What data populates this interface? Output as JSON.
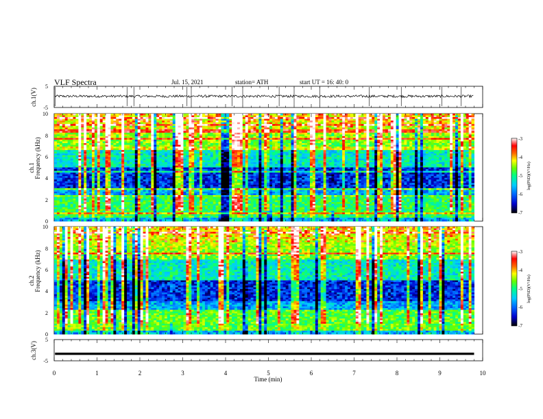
{
  "header": {
    "title": "VLF  Spectra",
    "date": "Jul.  15,  2021",
    "station": "station= ATH",
    "start": "start  UT  =    16: 40: 0"
  },
  "chart_data": [
    {
      "type": "line",
      "panel": "ch1_waveform",
      "ylabel": "ch.1(V)",
      "ylim": [
        -5,
        5
      ],
      "yticks": [
        "5",
        "-5"
      ],
      "xlim": [
        0,
        10
      ],
      "baseline_v": 0.3,
      "noise_amplitude_v": 0.6,
      "spike_times_min": [
        0.02,
        1.7,
        1.86,
        3.1,
        3.2,
        4.15,
        4.4,
        5.25,
        5.6,
        6.2,
        7.35,
        8.1,
        9.05,
        9.5
      ],
      "color": "#000000"
    },
    {
      "type": "heatmap",
      "panel": "ch1_spectrogram",
      "ylabel_lines": [
        "ch.1",
        "Frequency  (kHz)"
      ],
      "ylim": [
        0,
        10
      ],
      "yticks": [
        "0",
        "2",
        "4",
        "6",
        "8",
        "10"
      ],
      "xlim": [
        0,
        9.8
      ],
      "clim": [
        -7,
        -3
      ],
      "colormap": [
        "#000000",
        "#0000cc",
        "#0066ff",
        "#00ccff",
        "#00ff88",
        "#66ff00",
        "#ffff00",
        "#ff6600",
        "#ff0000",
        "#ffffff"
      ]
    },
    {
      "type": "heatmap",
      "panel": "ch2_spectrogram",
      "ylabel_lines": [
        "ch.2",
        "Frequency  (kHz)"
      ],
      "ylim": [
        0,
        10
      ],
      "yticks": [
        "0",
        "2",
        "4",
        "6",
        "8",
        "10"
      ],
      "xlim": [
        0,
        9.8
      ],
      "clim": [
        -7,
        -3
      ],
      "colormap": [
        "#000000",
        "#0000cc",
        "#0066ff",
        "#00ccff",
        "#00ff88",
        "#66ff00",
        "#ffff00",
        "#ff6600",
        "#ff0000",
        "#ffffff"
      ]
    },
    {
      "type": "line",
      "panel": "ch3_waveform",
      "ylabel": "ch.3(V)",
      "ylim": [
        -5,
        5
      ],
      "yticks": [
        "5",
        "-5"
      ],
      "xlim": [
        0,
        10
      ],
      "xticks": [
        "0",
        "1",
        "2",
        "3",
        "4",
        "5",
        "6",
        "7",
        "8",
        "9",
        "10"
      ],
      "xlabel": "Time  (min)",
      "level_v": -1.7,
      "color": "#000000"
    }
  ],
  "colorbars": [
    {
      "panel": "ch1_colorbar",
      "ticks": [
        "-3",
        "-4",
        "-5",
        "-6",
        "-7"
      ],
      "label": "log(PSD)(V²/Hz)"
    },
    {
      "panel": "ch2_colorbar",
      "ticks": [
        "-3",
        "-4",
        "-5",
        "-6",
        "-7"
      ],
      "label": "log(PSD)(V²/Hz)"
    }
  ]
}
